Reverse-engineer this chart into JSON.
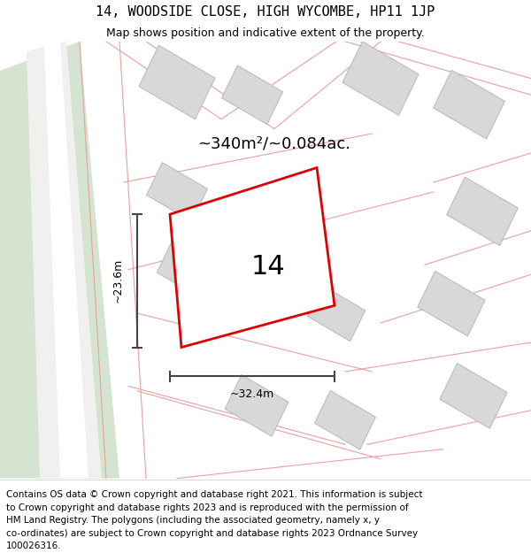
{
  "title": "14, WOODSIDE CLOSE, HIGH WYCOMBE, HP11 1JP",
  "subtitle": "Map shows position and indicative extent of the property.",
  "area_label": "~340m²/~0.084ac.",
  "width_label": "~32.4m",
  "height_label": "~23.6m",
  "plot_number": "14",
  "bg_color": "#f7f7f5",
  "green_strip_color": "#d4e4d0",
  "white_strip_color": "#f0f0ee",
  "building_fill": "#d8d8d8",
  "building_edge": "#b8b8b8",
  "plot_outline_color": "#e00000",
  "dim_line_color": "#444444",
  "pink_line_color": "#e8a0a0",
  "title_fontsize": 11,
  "subtitle_fontsize": 9,
  "footer_fontsize": 7.5,
  "footer_lines": [
    "Contains OS data © Crown copyright and database right 2021. This information is subject",
    "to Crown copyright and database rights 2023 and is reproduced with the permission of",
    "HM Land Registry. The polygons (including the associated geometry, namely x, y",
    "co-ordinates) are subject to Crown copyright and database rights 2023 Ordnance Survey",
    "100026316."
  ]
}
